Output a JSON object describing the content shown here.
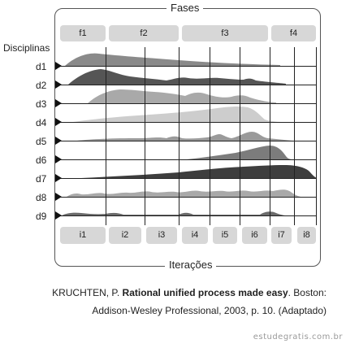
{
  "titles": {
    "top": "Fases",
    "bottom": "Iterações",
    "left": "Disciplinas"
  },
  "phases": [
    "f1",
    "f2",
    "f3",
    "f4"
  ],
  "iterations": [
    "i1",
    "i2",
    "i3",
    "i4",
    "i5",
    "i6",
    "i7",
    "i8"
  ],
  "disciplines": [
    "d1",
    "d2",
    "d3",
    "d4",
    "d5",
    "d6",
    "d7",
    "d8",
    "d9"
  ],
  "citation": {
    "line1_prefix": "KRUCHTEN, P. ",
    "line1_bold": "Rational unified process made easy",
    "line1_suffix": ". Boston:",
    "line2": "Addison-Wesley Professional, 2003, p. 10. (Adaptado)"
  },
  "watermark": "estudegratis.com.br",
  "colors": {
    "tab_fill": "#d7d7d7",
    "dark_hump": "#4a4a4a",
    "mid_hump": "#7a7a7a",
    "light_hump": "#a8a8a8",
    "pale_hump": "#c8c8c8"
  }
}
